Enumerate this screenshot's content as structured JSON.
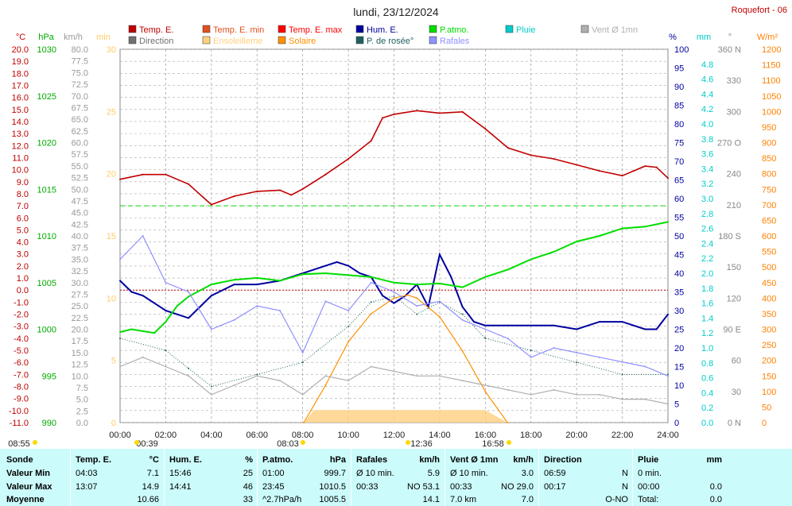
{
  "title": "lundi, 23/12/2024",
  "station": "Roquefort - 06",
  "colors": {
    "temp": "#c00000",
    "hum": "#0000a0",
    "patmo": "#00dd00",
    "rafales": "#8080ff",
    "vent": "#b0b0b0",
    "solaire": "#ff9000",
    "ensoleillement": "#ffd080",
    "rosee": "#206060",
    "direction": "#707070",
    "pluie": "#00cccc"
  },
  "legend": [
    {
      "label": "Temp. E.",
      "color": "#c00000"
    },
    {
      "label": "Temp. E. min",
      "color": "#e05020"
    },
    {
      "label": "Temp. E. max",
      "color": "#ff0000"
    },
    {
      "label": "Hum. E.",
      "color": "#0000a0"
    },
    {
      "label": "P.atmo.",
      "color": "#00dd00"
    },
    {
      "label": "Pluie",
      "color": "#00cccc"
    },
    {
      "label": "Vent Ø 1mn",
      "color": "#b0b0b0"
    },
    {
      "label": "Direction",
      "color": "#707070"
    },
    {
      "label": "Ensoleilleme",
      "color": "#ffd080"
    },
    {
      "label": "Solaire",
      "color": "#ff9000"
    },
    {
      "label": "P. de rosée°",
      "color": "#206060"
    },
    {
      "label": "Rafales",
      "color": "#9090ff"
    }
  ],
  "axes_units": {
    "temp": "°C",
    "hpa": "hPa",
    "kmh": "km/h",
    "min": "min",
    "hum": "%",
    "mm": "mm",
    "deg": "°",
    "wm2": "W/m²"
  },
  "x_ticks": [
    "00:00",
    "02:00",
    "04:00",
    "06:00",
    "08:00",
    "10:00",
    "12:00",
    "14:00",
    "16:00",
    "18:00",
    "20:00",
    "22:00",
    "24:00"
  ],
  "sun": {
    "sunrise_label": "08:03",
    "sunset_label": "16:58",
    "noon_label": "12:36",
    "daylen_label": "08:55",
    "night_label": "00:39"
  },
  "chart_data": {
    "type": "line",
    "x_unit": "hour",
    "axes": {
      "temp": {
        "label": "°C",
        "range": [
          -11,
          20
        ]
      },
      "patmo": {
        "label": "hPa",
        "range": [
          990,
          1030
        ]
      },
      "wind": {
        "label": "km/h",
        "range": [
          0,
          80
        ]
      },
      "ensoleillement": {
        "label": "min",
        "range": [
          0,
          30
        ]
      },
      "hum": {
        "label": "%",
        "range": [
          0,
          100
        ]
      },
      "pluie": {
        "label": "mm",
        "range": [
          0,
          5
        ]
      },
      "direction": {
        "label": "°",
        "range": [
          0,
          360
        ]
      },
      "solaire": {
        "label": "W/m²",
        "range": [
          0,
          1200
        ]
      }
    },
    "series": [
      {
        "name": "Temp. E.",
        "axis": "temp",
        "x": [
          0,
          1,
          2,
          3,
          4,
          5,
          6,
          7,
          7.5,
          8,
          9,
          10,
          11,
          11.5,
          12,
          13,
          14,
          15,
          16,
          17,
          18,
          19,
          20,
          21,
          22,
          22.5,
          23,
          23.5,
          24
        ],
        "values": [
          9.2,
          9.6,
          9.6,
          8.8,
          7.1,
          7.8,
          8.2,
          8.3,
          7.9,
          8.4,
          9.6,
          10.9,
          12.4,
          14.3,
          14.6,
          14.9,
          14.7,
          14.8,
          13.4,
          11.8,
          11.2,
          10.9,
          10.4,
          9.9,
          9.5,
          9.9,
          10.3,
          10.2,
          9.3
        ]
      },
      {
        "name": "Hum. E.",
        "axis": "hum",
        "x": [
          0,
          0.5,
          1,
          1.5,
          2,
          2.5,
          3,
          4,
          5,
          6,
          7,
          8,
          9,
          9.5,
          10,
          10.5,
          11,
          11.5,
          12,
          12.5,
          13,
          13.5,
          14,
          14.5,
          15,
          15.5,
          16,
          17,
          18,
          19,
          20,
          21,
          22,
          23,
          23.5,
          24
        ],
        "values": [
          38,
          35,
          34,
          32,
          30,
          29,
          28,
          34,
          37,
          37,
          38,
          40,
          42,
          43,
          42,
          40,
          39,
          34,
          32,
          34,
          37,
          31,
          45,
          39,
          31,
          27,
          26,
          26,
          26,
          26,
          25,
          27,
          27,
          25,
          25,
          29
        ]
      },
      {
        "name": "P.atmo.",
        "axis": "patmo",
        "x": [
          0,
          0.5,
          1,
          1.5,
          2,
          2.5,
          3,
          4,
          5,
          6,
          7,
          8,
          9,
          10,
          11,
          12,
          13,
          14,
          15,
          16,
          17,
          18,
          19,
          20,
          21,
          22,
          23,
          24
        ],
        "values": [
          999.7,
          1000,
          999.8,
          999.6,
          1000.8,
          1002.5,
          1003.5,
          1004.8,
          1005.3,
          1005.5,
          1005.2,
          1005.9,
          1006,
          1005.8,
          1005.6,
          1005,
          1004.8,
          1004.9,
          1004.5,
          1005.6,
          1006.4,
          1007.5,
          1008.3,
          1009.4,
          1010,
          1010.8,
          1011,
          1011.5
        ]
      },
      {
        "name": "Solaire",
        "axis": "solaire",
        "x": [
          8.05,
          9,
          10,
          11,
          12,
          12.6,
          13,
          14,
          15,
          16,
          16.97
        ],
        "values": [
          0,
          120,
          260,
          350,
          400,
          410,
          400,
          340,
          230,
          100,
          0
        ]
      },
      {
        "name": "P. de rosée°",
        "axis": "temp",
        "x": [
          0,
          2,
          3,
          4,
          6,
          8,
          10,
          11,
          12,
          13,
          14,
          15,
          16,
          18,
          20,
          22,
          24
        ],
        "values": [
          -4,
          -5,
          -6.5,
          -8,
          -7,
          -6,
          -3,
          -1,
          -0.5,
          -2,
          -1,
          -2,
          -4,
          -5,
          -6,
          -7,
          -7
        ]
      },
      {
        "name": "Rafales",
        "axis": "wind",
        "x": [
          0,
          1,
          2,
          3,
          4,
          5,
          6,
          7,
          8,
          9,
          10,
          11,
          12,
          13,
          14,
          15,
          16,
          17,
          18,
          19,
          20,
          21,
          22,
          23,
          24
        ],
        "values": [
          35,
          40,
          30,
          28,
          20,
          22,
          25,
          24,
          15,
          26,
          24,
          30,
          28,
          25,
          26,
          22,
          20,
          18,
          14,
          16,
          15,
          14,
          13,
          12,
          10
        ]
      },
      {
        "name": "Vent Ø 1mn",
        "axis": "wind",
        "x": [
          0,
          1,
          2,
          3,
          4,
          5,
          6,
          7,
          8,
          9,
          10,
          11,
          12,
          13,
          14,
          15,
          16,
          17,
          18,
          19,
          20,
          21,
          22,
          23,
          24
        ],
        "values": [
          12,
          14,
          12,
          10,
          6,
          8,
          10,
          9,
          6,
          10,
          9,
          12,
          11,
          10,
          10,
          9,
          8,
          7,
          6,
          7,
          6,
          6,
          5,
          5,
          4
        ]
      },
      {
        "name": "Ensoleilleme",
        "axis": "ensoleillement",
        "x": [
          8.05,
          8.5,
          9,
          10,
          11,
          12,
          13,
          14,
          15,
          16,
          16.97
        ],
        "values": [
          0,
          1,
          1,
          1,
          1,
          1,
          1,
          1,
          1,
          1,
          0
        ]
      }
    ],
    "reference_lines": [
      {
        "axis": "temp",
        "value": 7.0,
        "color": "#00dd00",
        "style": "dashed"
      },
      {
        "axis": "temp",
        "value": 0,
        "color": "#c00000",
        "style": "dotted"
      }
    ]
  },
  "table": {
    "rows": [
      "Sonde",
      "Valeur Min",
      "Valeur Max",
      "Moyenne"
    ],
    "cols": [
      {
        "header": "Temp. E.",
        "unit": "°C",
        "cells": [
          [
            "04:03",
            "7.1"
          ],
          [
            "13:07",
            "14.9"
          ],
          [
            "",
            "10.66"
          ]
        ]
      },
      {
        "header": "Hum. E.",
        "unit": "%",
        "cells": [
          [
            "15:46",
            "25"
          ],
          [
            "14:41",
            "46"
          ],
          [
            "",
            "33"
          ]
        ]
      },
      {
        "header": "P.atmo.",
        "unit": "hPa",
        "cells": [
          [
            "01:00",
            "999.7"
          ],
          [
            "23:45",
            "1010.5"
          ],
          [
            "^2.7hPa/h",
            "1005.5"
          ]
        ]
      },
      {
        "header": "Rafales",
        "unit": "km/h",
        "cells": [
          [
            "Ø 10 min.",
            "5.9"
          ],
          [
            "00:33",
            "NO 53.1"
          ],
          [
            "",
            "14.1"
          ]
        ]
      },
      {
        "header": "Vent Ø 1mn",
        "unit": "km/h",
        "cells": [
          [
            "Ø 10 min.",
            "3.0"
          ],
          [
            "00:33",
            "NO 29.0"
          ],
          [
            "7.0 km",
            "7.0"
          ]
        ]
      },
      {
        "header": "Direction",
        "unit": "",
        "cells": [
          [
            "06:59",
            "N"
          ],
          [
            "00:17",
            "N"
          ],
          [
            "",
            "O-NO"
          ]
        ]
      },
      {
        "header": "Pluie",
        "unit": "mm",
        "cells": [
          [
            "0 min.",
            ""
          ],
          [
            "00:00",
            "0.0"
          ],
          [
            "Total:",
            "0.0"
          ]
        ]
      }
    ]
  }
}
